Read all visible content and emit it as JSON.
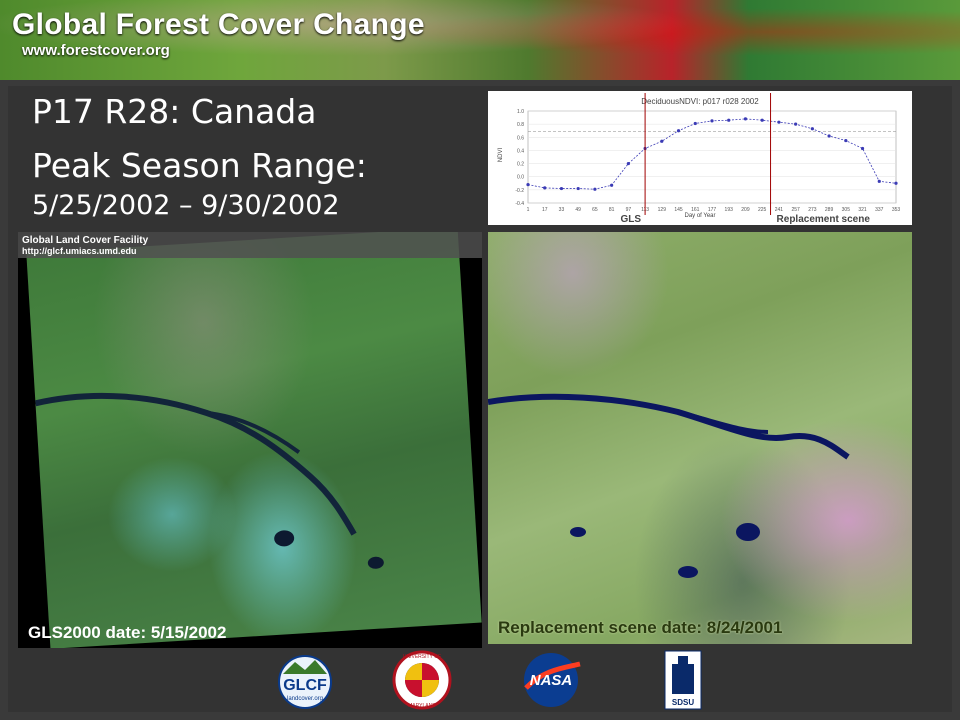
{
  "banner": {
    "title": "Global Forest Cover Change",
    "url": "www.forestcover.org"
  },
  "slide": {
    "title_line1": "P17 R28: Canada",
    "title_line2": "Peak Season Range:",
    "title_line3": "5/25/2002 – 9/30/2002"
  },
  "chart_data": {
    "type": "line",
    "title": "DeciduousNDVI: p017 r028 2002",
    "xlabel": "Day of Year",
    "ylabel": "NDVI",
    "x": [
      1,
      17,
      33,
      49,
      65,
      81,
      97,
      113,
      129,
      145,
      161,
      177,
      193,
      209,
      225,
      241,
      257,
      273,
      289,
      305,
      321,
      337,
      353
    ],
    "x_ticks": [
      "1",
      "17",
      "33",
      "49",
      "65",
      "81",
      "97",
      "113",
      "129",
      "145",
      "161",
      "177",
      "193",
      "209",
      "225",
      "241",
      "257",
      "273",
      "289",
      "305",
      "321",
      "337",
      "353"
    ],
    "y_ticks": [
      "1.0",
      "0.8",
      "0.6",
      "0.4",
      "0.2",
      "0.0",
      "-0.2",
      "-0.4"
    ],
    "ylim": [
      -0.4,
      1.0
    ],
    "series": [
      {
        "values": [
          -0.12,
          -0.17,
          -0.18,
          -0.18,
          -0.19,
          -0.13,
          0.2,
          0.43,
          0.54,
          0.7,
          0.81,
          0.85,
          0.86,
          0.88,
          0.86,
          0.83,
          0.8,
          0.73,
          0.62,
          0.55,
          0.43,
          -0.07,
          -0.1
        ]
      }
    ],
    "reference_line": 0.69,
    "markers": [
      {
        "x": 113,
        "label": "GLS"
      },
      {
        "x": 233,
        "label": "Replacement scene"
      }
    ],
    "grid": true
  },
  "left_image": {
    "header_name": "Global Land Cover Facility",
    "header_url": "http://glcf.umiacs.umd.edu",
    "caption": "GLS2000 date: 5/15/2002"
  },
  "right_image": {
    "caption": "Replacement scene date: 8/24/2001"
  },
  "logos": {
    "glcf": {
      "name": "GLCF",
      "sub": "landcover.org"
    },
    "umd": {
      "top": "UNIVERSITY OF",
      "bottom": "MARYLAND"
    },
    "nasa": {
      "name": "NASA"
    },
    "sdsu": {
      "name": "SDSU"
    }
  },
  "colors": {
    "marker": "#a00000",
    "series": "#3b3bb5",
    "reference": "#888888"
  }
}
